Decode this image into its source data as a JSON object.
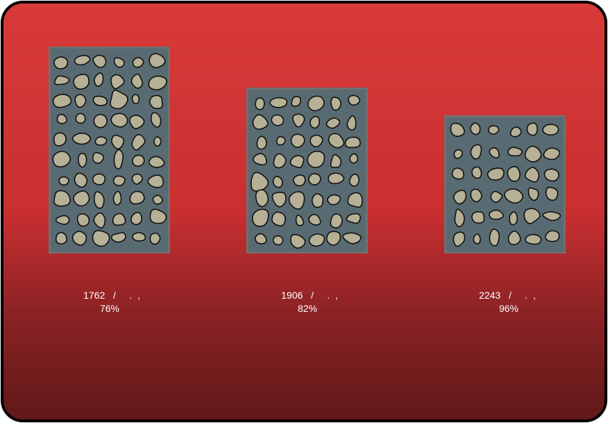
{
  "items": [
    {
      "line1": "1762   /     .  ,",
      "line2": "76%"
    },
    {
      "line1": "1906   /     .  ,",
      "line2": "82%"
    },
    {
      "line1": "2243   /     .  ,",
      "line2": "96%"
    }
  ]
}
